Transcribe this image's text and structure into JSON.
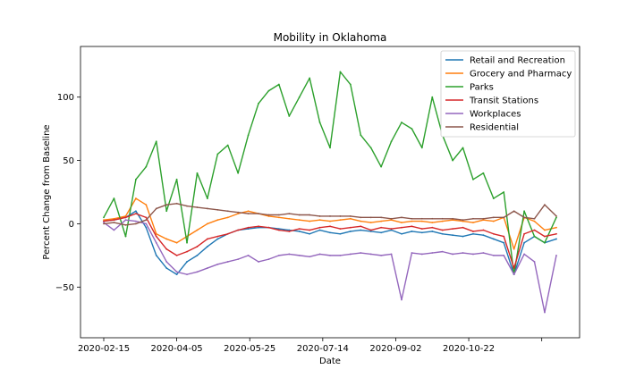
{
  "chart_data": {
    "type": "line",
    "title": "Mobility in Oklahoma",
    "xlabel": "Date",
    "ylabel": "Percent Change from Baseline",
    "x_tick_labels": [
      "2020-02-15",
      "2020-04-05",
      "2020-05-25",
      "2020-07-14",
      "2020-09-02",
      "2020-10-22",
      ""
    ],
    "y_ticks": [
      -50,
      0,
      50,
      100
    ],
    "ylim": [
      -90,
      140
    ],
    "x_start": "2020-02-15",
    "x_end": "2020-12-21",
    "grid": false,
    "legend_position": "top-right",
    "x": [
      "2020-02-15",
      "2020-02-22",
      "2020-03-01",
      "2020-03-08",
      "2020-03-15",
      "2020-03-22",
      "2020-03-29",
      "2020-04-05",
      "2020-04-12",
      "2020-04-19",
      "2020-04-26",
      "2020-05-03",
      "2020-05-10",
      "2020-05-17",
      "2020-05-24",
      "2020-05-31",
      "2020-06-07",
      "2020-06-14",
      "2020-06-21",
      "2020-06-28",
      "2020-07-05",
      "2020-07-12",
      "2020-07-19",
      "2020-07-26",
      "2020-08-02",
      "2020-08-09",
      "2020-08-16",
      "2020-08-23",
      "2020-08-30",
      "2020-09-06",
      "2020-09-13",
      "2020-09-20",
      "2020-09-27",
      "2020-10-04",
      "2020-10-11",
      "2020-10-18",
      "2020-10-25",
      "2020-11-01",
      "2020-11-08",
      "2020-11-15",
      "2020-11-22",
      "2020-11-29",
      "2020-12-06",
      "2020-12-13",
      "2020-12-21"
    ],
    "series": [
      {
        "name": "Retail and Recreation",
        "color": "#1f77b4",
        "values": [
          2,
          3,
          5,
          10,
          -3,
          -25,
          -35,
          -40,
          -30,
          -25,
          -18,
          -12,
          -8,
          -5,
          -4,
          -3,
          -3,
          -4,
          -5,
          -6,
          -8,
          -5,
          -7,
          -8,
          -6,
          -5,
          -6,
          -7,
          -5,
          -8,
          -6,
          -7,
          -6,
          -8,
          -9,
          -10,
          -8,
          -9,
          -12,
          -15,
          -40,
          -15,
          -10,
          -15,
          -12
        ]
      },
      {
        "name": "Grocery and Pharmacy",
        "color": "#ff7f0e",
        "values": [
          3,
          4,
          6,
          20,
          15,
          -8,
          -12,
          -15,
          -10,
          -5,
          0,
          3,
          5,
          8,
          10,
          8,
          6,
          5,
          4,
          3,
          2,
          3,
          2,
          3,
          4,
          2,
          1,
          2,
          3,
          1,
          2,
          2,
          1,
          2,
          3,
          2,
          1,
          3,
          2,
          5,
          -20,
          5,
          2,
          -5,
          -3
        ]
      },
      {
        "name": "Parks",
        "color": "#2ca02c",
        "values": [
          5,
          20,
          -10,
          35,
          45,
          65,
          10,
          35,
          -15,
          40,
          20,
          55,
          62,
          40,
          70,
          95,
          105,
          110,
          85,
          100,
          115,
          80,
          60,
          120,
          110,
          70,
          60,
          45,
          65,
          80,
          75,
          60,
          100,
          70,
          50,
          60,
          35,
          40,
          20,
          25,
          -40,
          10,
          -10,
          -15,
          5
        ]
      },
      {
        "name": "Transit Stations",
        "color": "#d62728",
        "values": [
          2,
          3,
          5,
          8,
          5,
          -10,
          -20,
          -25,
          -22,
          -18,
          -12,
          -10,
          -8,
          -5,
          -3,
          -2,
          -3,
          -5,
          -6,
          -4,
          -5,
          -3,
          -2,
          -4,
          -3,
          -2,
          -5,
          -3,
          -4,
          -3,
          -2,
          -4,
          -3,
          -5,
          -4,
          -3,
          -6,
          -5,
          -8,
          -10,
          -35,
          -8,
          -5,
          -10,
          -8
        ]
      },
      {
        "name": "Workplaces",
        "color": "#9467bd",
        "values": [
          1,
          -5,
          3,
          2,
          0,
          -15,
          -30,
          -38,
          -40,
          -38,
          -35,
          -32,
          -30,
          -28,
          -25,
          -30,
          -28,
          -25,
          -24,
          -25,
          -26,
          -24,
          -25,
          -25,
          -24,
          -23,
          -24,
          -25,
          -24,
          -60,
          -23,
          -24,
          -23,
          -22,
          -24,
          -23,
          -24,
          -23,
          -25,
          -25,
          -40,
          -24,
          -30,
          -70,
          -25
        ]
      },
      {
        "name": "Residential",
        "color": "#8c564b",
        "values": [
          0,
          1,
          -1,
          0,
          3,
          12,
          15,
          16,
          14,
          13,
          12,
          11,
          10,
          9,
          8,
          8,
          7,
          7,
          8,
          7,
          7,
          6,
          6,
          6,
          6,
          5,
          5,
          5,
          4,
          5,
          4,
          4,
          4,
          4,
          4,
          3,
          4,
          4,
          5,
          5,
          10,
          5,
          4,
          15,
          6
        ]
      }
    ]
  }
}
